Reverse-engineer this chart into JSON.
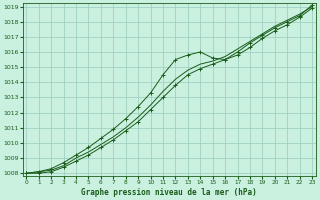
{
  "title": "Graphe pression niveau de la mer (hPa)",
  "background_color": "#caf0e0",
  "grid_color": "#99ccbb",
  "line_color": "#1a5c1a",
  "x_ticks": [
    0,
    1,
    2,
    3,
    4,
    5,
    6,
    7,
    8,
    9,
    10,
    11,
    12,
    13,
    14,
    15,
    16,
    17,
    18,
    19,
    20,
    21,
    22,
    23
  ],
  "y_min": 1008,
  "y_max": 1019,
  "y_ticks": [
    1008,
    1009,
    1010,
    1011,
    1012,
    1013,
    1014,
    1015,
    1016,
    1017,
    1018,
    1019
  ],
  "line1_x": [
    0,
    1,
    2,
    3,
    4,
    5,
    6,
    7,
    8,
    9,
    10,
    11,
    12,
    13,
    14,
    15,
    16,
    17,
    18,
    19,
    20,
    21,
    22,
    23
  ],
  "line1_y": [
    1008.0,
    1008.1,
    1008.2,
    1008.5,
    1009.0,
    1009.4,
    1009.9,
    1010.4,
    1011.0,
    1011.7,
    1012.5,
    1013.4,
    1014.2,
    1014.8,
    1015.2,
    1015.4,
    1015.7,
    1016.2,
    1016.7,
    1017.2,
    1017.7,
    1018.1,
    1018.5,
    1019.0
  ],
  "line2_x": [
    0,
    1,
    2,
    3,
    4,
    5,
    6,
    7,
    8,
    9,
    10,
    11,
    12,
    13,
    14,
    15,
    16,
    17,
    18,
    19,
    20,
    21,
    22,
    23
  ],
  "line2_y": [
    1008.0,
    1008.1,
    1008.3,
    1008.7,
    1009.2,
    1009.7,
    1010.3,
    1010.9,
    1011.6,
    1012.4,
    1013.3,
    1014.5,
    1015.5,
    1015.8,
    1016.0,
    1015.6,
    1015.5,
    1015.8,
    1016.3,
    1016.9,
    1017.4,
    1017.8,
    1018.3,
    1018.9
  ],
  "line3_x": [
    0,
    1,
    2,
    3,
    4,
    5,
    6,
    7,
    8,
    9,
    10,
    11,
    12,
    13,
    14,
    15,
    16,
    17,
    18,
    19,
    20,
    21,
    22,
    23
  ],
  "line3_y": [
    1008.0,
    1008.0,
    1008.1,
    1008.4,
    1008.8,
    1009.2,
    1009.7,
    1010.2,
    1010.8,
    1011.4,
    1012.2,
    1013.0,
    1013.8,
    1014.5,
    1014.9,
    1015.2,
    1015.5,
    1016.0,
    1016.6,
    1017.1,
    1017.6,
    1018.0,
    1018.4,
    1019.1
  ]
}
